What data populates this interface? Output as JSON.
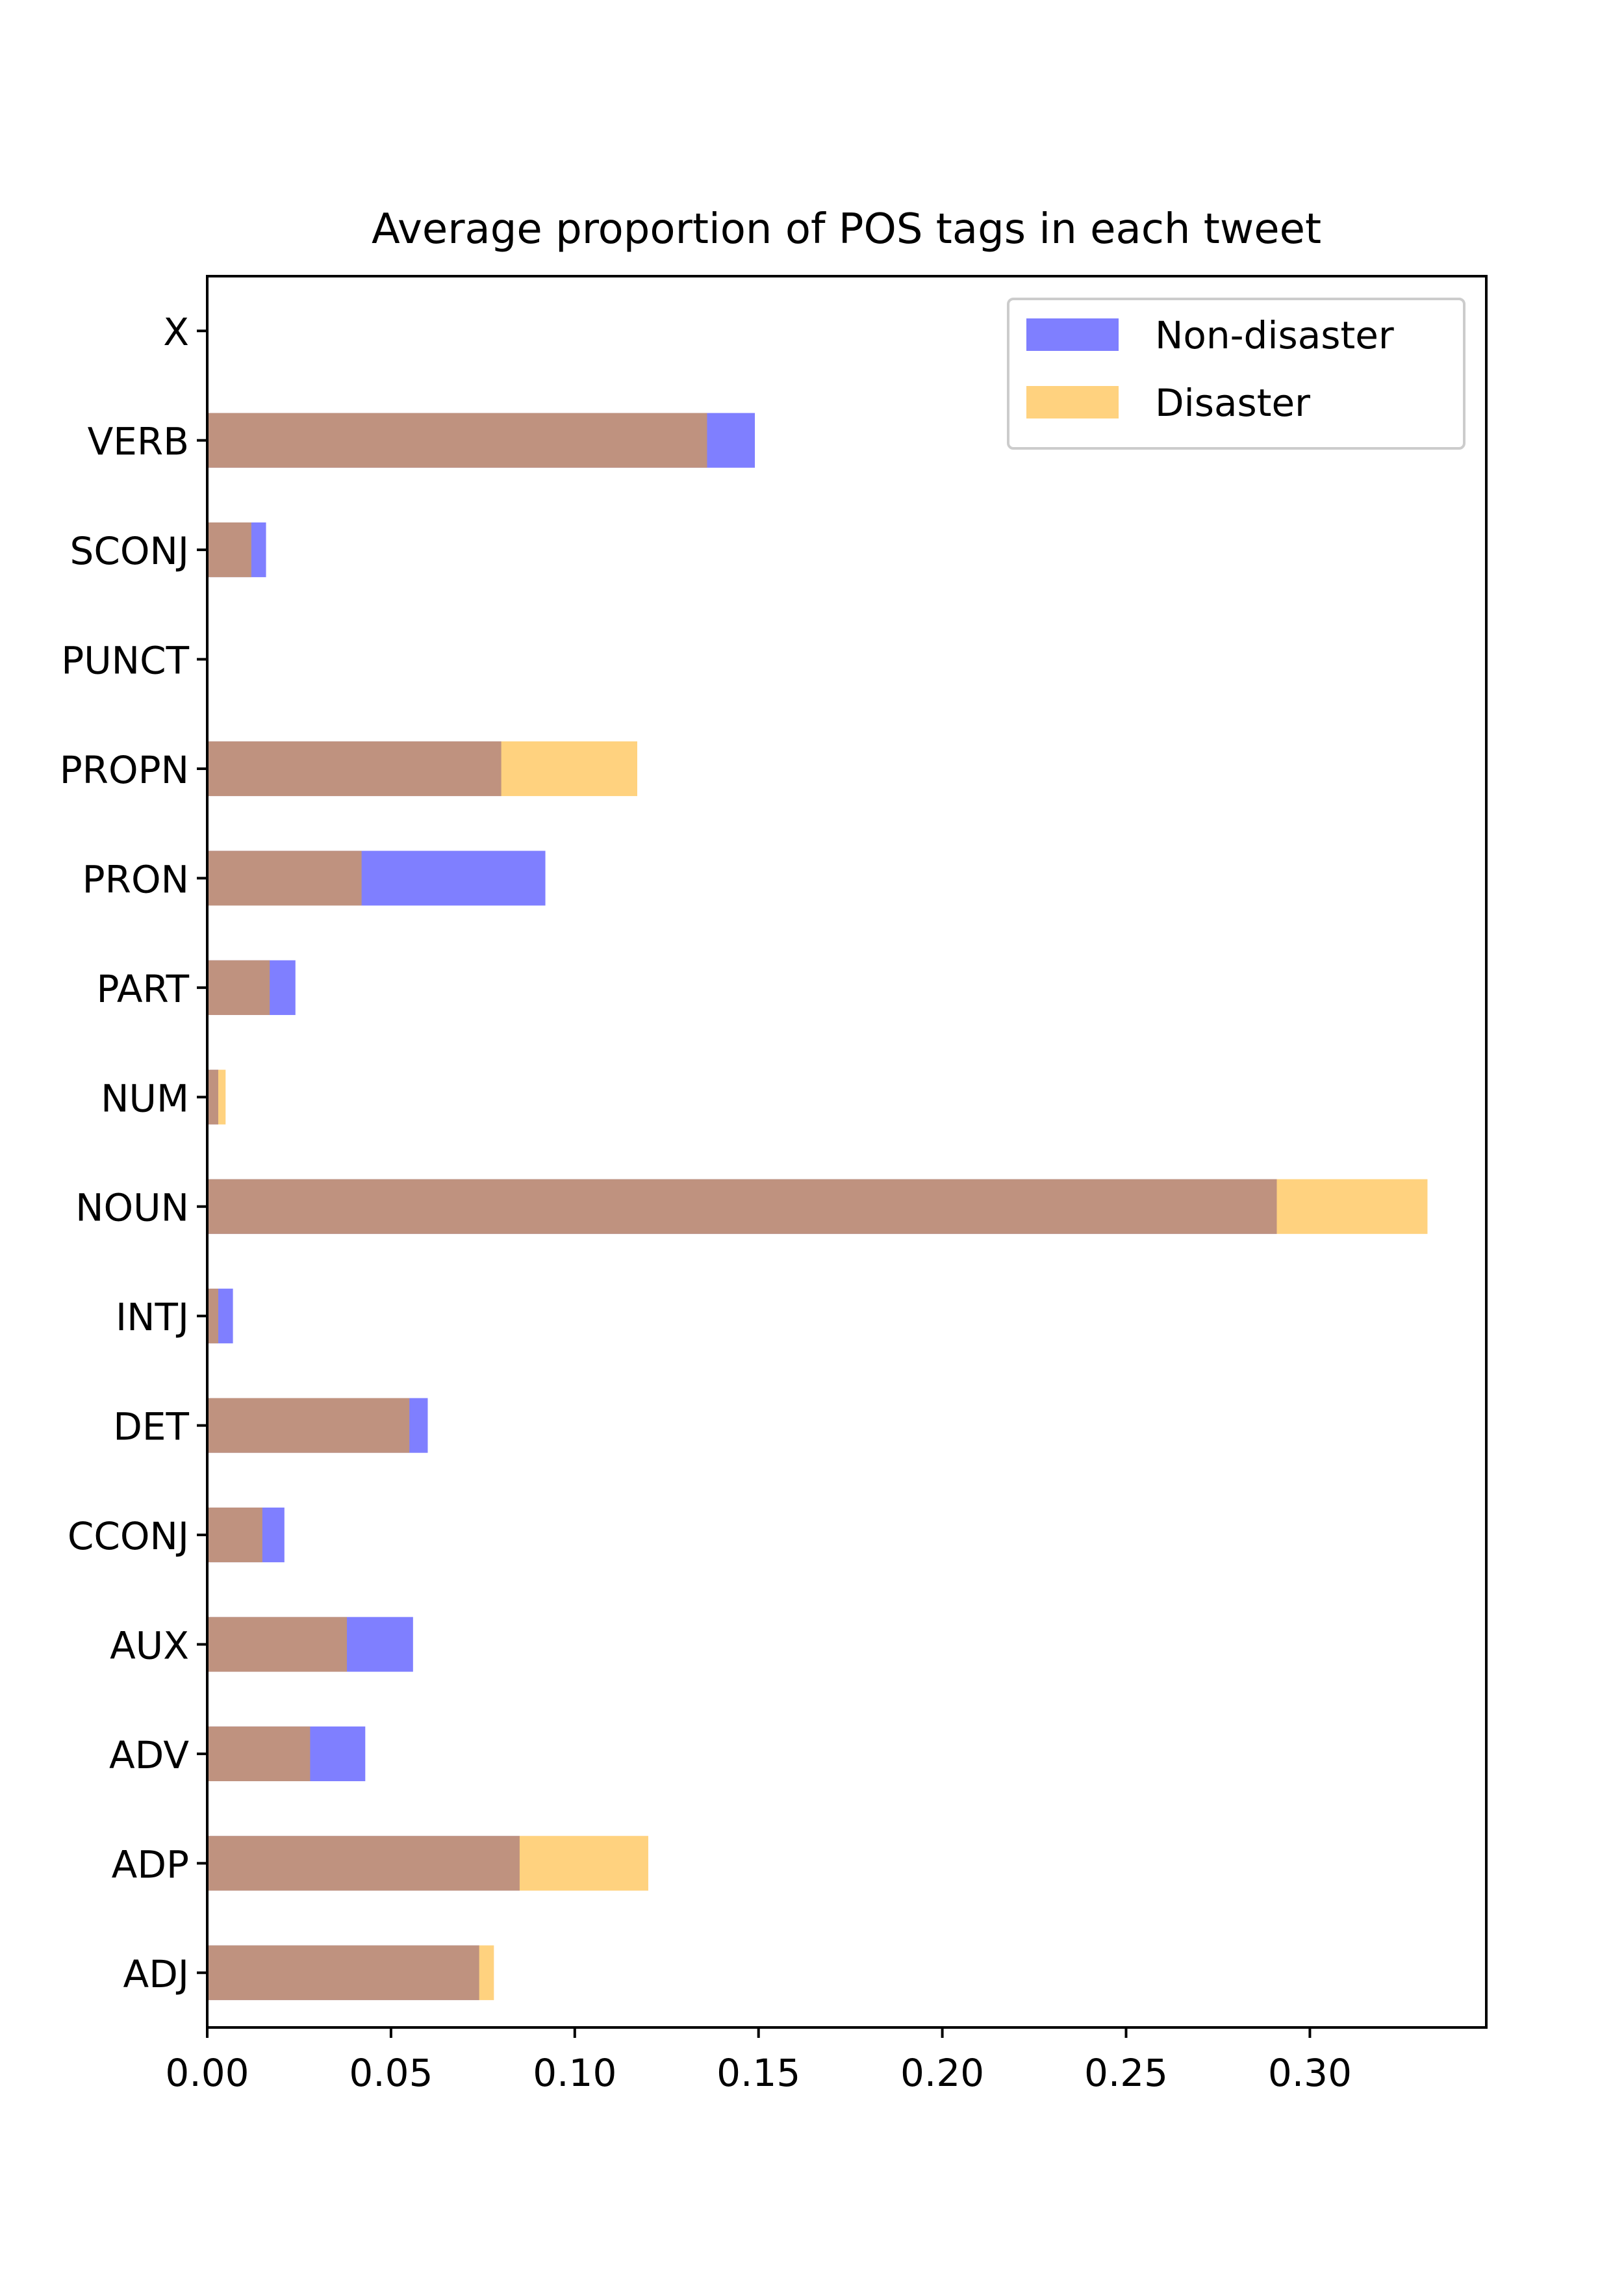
{
  "chart_data": {
    "type": "bar",
    "orientation": "horizontal",
    "stacking": "overlay",
    "title": "Average proportion of POS tags in each tweet",
    "xlabel": "",
    "ylabel": "",
    "xlim": [
      0,
      0.348
    ],
    "xticks": [
      0.0,
      0.05,
      0.1,
      0.15,
      0.2,
      0.25,
      0.3
    ],
    "xtick_labels": [
      "0.00",
      "0.05",
      "0.10",
      "0.15",
      "0.20",
      "0.25",
      "0.30"
    ],
    "grid": false,
    "legend_position": "top-right",
    "categories": [
      "ADJ",
      "ADP",
      "ADV",
      "AUX",
      "CCONJ",
      "DET",
      "INTJ",
      "NOUN",
      "NUM",
      "PART",
      "PRON",
      "PROPN",
      "PUNCT",
      "SCONJ",
      "VERB",
      "X"
    ],
    "series": [
      {
        "name": "Non-disaster",
        "color": "#0000ff",
        "opacity": 0.5,
        "values": [
          0.074,
          0.085,
          0.043,
          0.056,
          0.021,
          0.06,
          0.007,
          0.291,
          0.003,
          0.024,
          0.092,
          0.08,
          0.0,
          0.016,
          0.149,
          0.0
        ]
      },
      {
        "name": "Disaster",
        "color": "#ffa500",
        "opacity": 0.5,
        "values": [
          0.078,
          0.12,
          0.028,
          0.038,
          0.015,
          0.055,
          0.003,
          0.332,
          0.005,
          0.017,
          0.042,
          0.117,
          0.0,
          0.012,
          0.136,
          0.0
        ]
      }
    ]
  }
}
